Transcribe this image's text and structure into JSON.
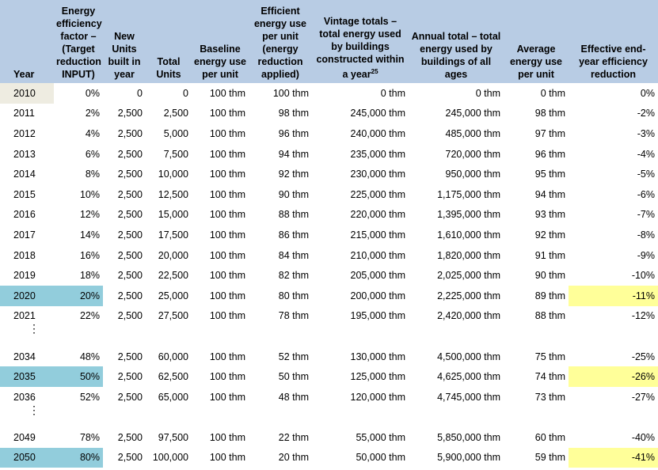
{
  "headers": [
    "Year",
    "Energy efficiency factor – (Target reduction INPUT)",
    "New Units built in year",
    "Total Units",
    "Baseline energy use per unit",
    "Efficient energy use per unit (energy reduction applied)",
    "Vintage totals – total energy used by buildings constructed within a year",
    "Annual total – total energy used by buildings of all ages",
    "Average energy use per unit",
    "Effective end-year efficiency reduction"
  ],
  "footnote_ref": "25",
  "ellipsis": "⋮",
  "rows": [
    [
      "2010",
      "0%",
      "0",
      "0",
      "100 thm",
      "100 thm",
      "0 thm",
      "0 thm",
      "0 thm",
      "0%"
    ],
    [
      "2011",
      "2%",
      "2,500",
      "2,500",
      "100 thm",
      "98 thm",
      "245,000 thm",
      "245,000 thm",
      "98 thm",
      "-2%"
    ],
    [
      "2012",
      "4%",
      "2,500",
      "5,000",
      "100 thm",
      "96 thm",
      "240,000 thm",
      "485,000 thm",
      "97 thm",
      "-3%"
    ],
    [
      "2013",
      "6%",
      "2,500",
      "7,500",
      "100 thm",
      "94 thm",
      "235,000 thm",
      "720,000 thm",
      "96 thm",
      "-4%"
    ],
    [
      "2014",
      "8%",
      "2,500",
      "10,000",
      "100 thm",
      "92 thm",
      "230,000 thm",
      "950,000 thm",
      "95 thm",
      "-5%"
    ],
    [
      "2015",
      "10%",
      "2,500",
      "12,500",
      "100 thm",
      "90 thm",
      "225,000 thm",
      "1,175,000 thm",
      "94 thm",
      "-6%"
    ],
    [
      "2016",
      "12%",
      "2,500",
      "15,000",
      "100 thm",
      "88 thm",
      "220,000 thm",
      "1,395,000 thm",
      "93 thm",
      "-7%"
    ],
    [
      "2017",
      "14%",
      "2,500",
      "17,500",
      "100 thm",
      "86 thm",
      "215,000 thm",
      "1,610,000 thm",
      "92 thm",
      "-8%"
    ],
    [
      "2018",
      "16%",
      "2,500",
      "20,000",
      "100 thm",
      "84 thm",
      "210,000 thm",
      "1,820,000 thm",
      "91 thm",
      "-9%"
    ],
    [
      "2019",
      "18%",
      "2,500",
      "22,500",
      "100 thm",
      "82 thm",
      "205,000 thm",
      "2,025,000 thm",
      "90 thm",
      "-10%"
    ],
    [
      "2020",
      "20%",
      "2,500",
      "25,000",
      "100 thm",
      "80 thm",
      "200,000 thm",
      "2,225,000 thm",
      "89 thm",
      "-11%"
    ],
    [
      "2021",
      "22%",
      "2,500",
      "27,500",
      "100 thm",
      "78 thm",
      "195,000 thm",
      "2,420,000 thm",
      "88 thm",
      "-12%"
    ],
    [
      "2034",
      "48%",
      "2,500",
      "60,000",
      "100 thm",
      "52 thm",
      "130,000 thm",
      "4,500,000 thm",
      "75 thm",
      "-25%"
    ],
    [
      "2035",
      "50%",
      "2,500",
      "62,500",
      "100 thm",
      "50 thm",
      "125,000 thm",
      "4,625,000 thm",
      "74 thm",
      "-26%"
    ],
    [
      "2036",
      "52%",
      "2,500",
      "65,000",
      "100 thm",
      "48 thm",
      "120,000 thm",
      "4,745,000 thm",
      "73 thm",
      "-27%"
    ],
    [
      "2049",
      "78%",
      "2,500",
      "97,500",
      "100 thm",
      "22 thm",
      "55,000 thm",
      "5,850,000 thm",
      "60 thm",
      "-40%"
    ],
    [
      "2050",
      "80%",
      "2,500",
      "100,000",
      "100 thm",
      "20 thm",
      "50,000 thm",
      "5,900,000 thm",
      "59 thm",
      "-41%"
    ]
  ],
  "colors": {
    "header_bg": "#b8cce4",
    "highlight_year": "#92cddc",
    "highlight_result": "#ffff99",
    "base_year": "#eeece1"
  }
}
